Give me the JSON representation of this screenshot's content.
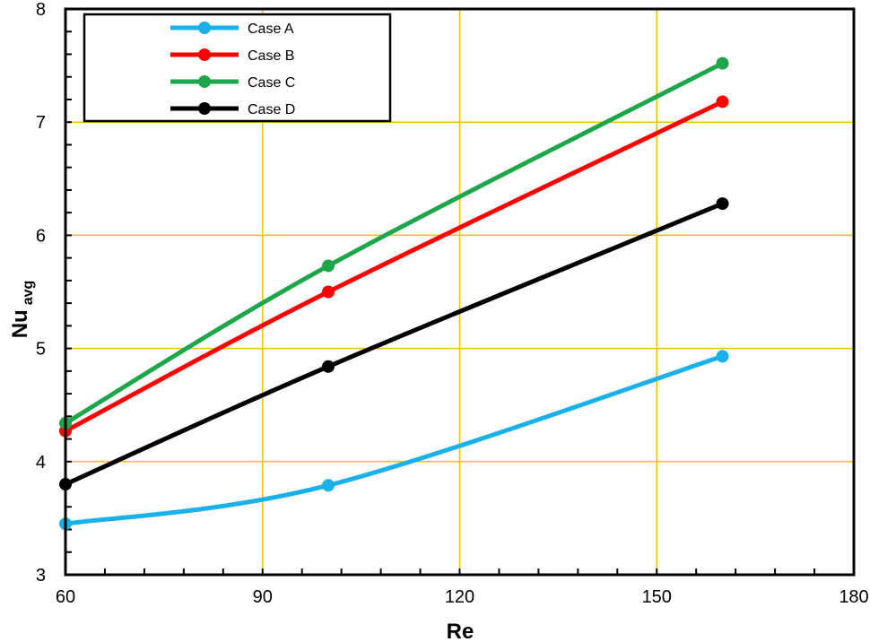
{
  "chart_data": {
    "type": "line",
    "title": "",
    "xlabel": "Re",
    "ylabel_main": "Nu",
    "ylabel_sub": "avg",
    "xlim": [
      60,
      180
    ],
    "ylim": [
      3,
      8
    ],
    "x_ticks": [
      60,
      90,
      120,
      150,
      180
    ],
    "y_ticks": [
      3,
      4,
      5,
      6,
      7,
      8
    ],
    "x_tick_labels": [
      "60",
      "90",
      "120",
      "150",
      "180"
    ],
    "y_tick_labels": [
      "3",
      "4",
      "5",
      "6",
      "7",
      "8"
    ],
    "grid": true,
    "grid_color": "#f5c000",
    "legend_position": "top-left",
    "series": [
      {
        "name": "Case A",
        "color": "#1ab0ea",
        "x": [
          60,
          100,
          160
        ],
        "values": [
          3.45,
          3.79,
          4.93
        ]
      },
      {
        "name": "Case B",
        "color": "#ff0000",
        "x": [
          60,
          100,
          160
        ],
        "values": [
          4.27,
          5.5,
          7.18
        ]
      },
      {
        "name": "Case C",
        "color": "#1ea64a",
        "x": [
          60,
          100,
          160
        ],
        "values": [
          4.34,
          5.73,
          7.52
        ]
      },
      {
        "name": "Case D",
        "color": "#000000",
        "x": [
          60,
          100,
          160
        ],
        "values": [
          3.8,
          4.84,
          6.28
        ]
      }
    ]
  }
}
